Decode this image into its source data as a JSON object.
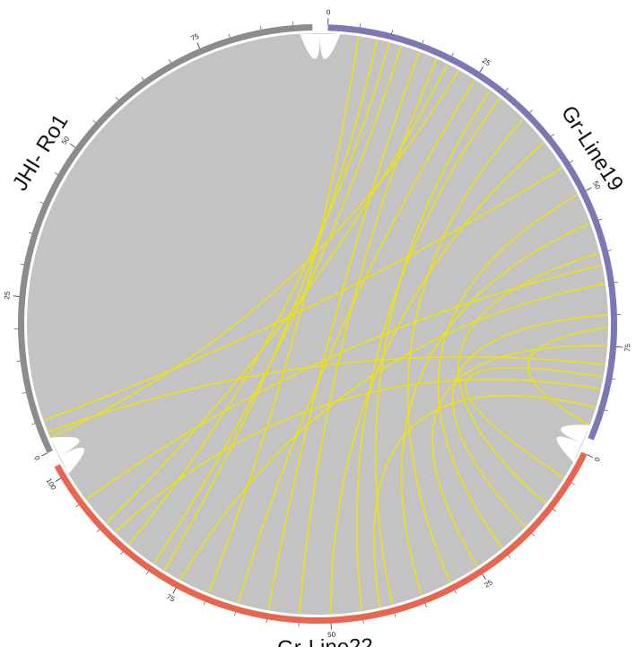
{
  "chart_data": {
    "type": "chord",
    "segments": [
      {
        "name": "Gr-Line19",
        "color": "#7b78b4",
        "length": 90,
        "ticks": [
          0,
          25,
          50,
          75
        ]
      },
      {
        "name": "Gr-Line22",
        "color": "#e8664f",
        "length": 102,
        "ticks": [
          0,
          25,
          50,
          75,
          100
        ]
      },
      {
        "name": "JHI- Ro1",
        "color": "#8c8c8c",
        "length": 93,
        "ticks": [
          0,
          25,
          50,
          75
        ]
      }
    ],
    "background_color": "#c3c3c3",
    "link_color": "#f2e600",
    "links": [
      {
        "source": [
          0,
          5
        ],
        "target": [
          1,
          70
        ]
      },
      {
        "source": [
          0,
          8
        ],
        "target": [
          1,
          78
        ]
      },
      {
        "source": [
          0,
          10
        ],
        "target": [
          1,
          85
        ]
      },
      {
        "source": [
          0,
          12
        ],
        "target": [
          1,
          80
        ]
      },
      {
        "source": [
          0,
          15
        ],
        "target": [
          1,
          60
        ]
      },
      {
        "source": [
          0,
          18
        ],
        "target": [
          1,
          55
        ]
      },
      {
        "source": [
          0,
          20
        ],
        "target": [
          1,
          90
        ]
      },
      {
        "source": [
          0,
          22
        ],
        "target": [
          2,
          2
        ]
      },
      {
        "source": [
          0,
          25
        ],
        "target": [
          1,
          65
        ]
      },
      {
        "source": [
          0,
          28
        ],
        "target": [
          1,
          40
        ]
      },
      {
        "source": [
          0,
          30
        ],
        "target": [
          1,
          45
        ]
      },
      {
        "source": [
          0,
          35
        ],
        "target": [
          1,
          30
        ]
      },
      {
        "source": [
          0,
          40
        ],
        "target": [
          1,
          50
        ]
      },
      {
        "source": [
          0,
          45
        ],
        "target": [
          2,
          5
        ]
      },
      {
        "source": [
          0,
          50
        ],
        "target": [
          1,
          20
        ]
      },
      {
        "source": [
          0,
          55
        ],
        "target": [
          1,
          35
        ]
      },
      {
        "source": [
          0,
          60
        ],
        "target": [
          1,
          10
        ]
      },
      {
        "source": [
          0,
          65
        ],
        "target": [
          1,
          75
        ]
      },
      {
        "source": [
          0,
          70
        ],
        "target": [
          1,
          15
        ]
      },
      {
        "source": [
          0,
          75
        ],
        "target": [
          1,
          25
        ]
      },
      {
        "source": [
          0,
          78
        ],
        "target": [
          2,
          3
        ]
      },
      {
        "source": [
          0,
          80
        ],
        "target": [
          1,
          5
        ]
      },
      {
        "source": [
          0,
          85
        ],
        "target": [
          1,
          42
        ]
      },
      {
        "source": [
          0,
          72
        ],
        "target": [
          0,
          88
        ]
      },
      {
        "source": [
          1,
          95
        ],
        "target": [
          0,
          62
        ]
      },
      {
        "source": [
          1,
          88
        ],
        "target": [
          0,
          82
        ]
      }
    ]
  }
}
